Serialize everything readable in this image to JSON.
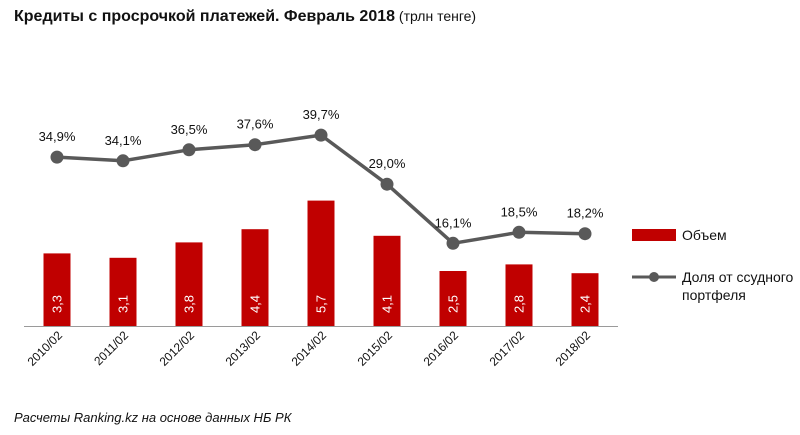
{
  "title": {
    "main": "Кредиты с просрочкой платежей. Февраль 2018",
    "unit": " (трлн тенге)"
  },
  "colors": {
    "bar": "#C00000",
    "line": "#595959",
    "axis": "#9A9A9A",
    "text": "#111111",
    "bar_label": "#FFFFFF"
  },
  "chart_data": {
    "type": "bar+line",
    "title": "Кредиты с просрочкой платежей. Февраль 2018 (трлн тенге)",
    "categories": [
      "2010/02",
      "2011/02",
      "2012/02",
      "2013/02",
      "2014/02",
      "2015/02",
      "2016/02",
      "2017/02",
      "2018/02"
    ],
    "series": [
      {
        "name": "Объем",
        "type": "bar",
        "axis": "primary",
        "values": [
          3.3,
          3.1,
          3.8,
          4.4,
          5.7,
          4.1,
          2.5,
          2.8,
          2.4
        ],
        "labels": [
          "3,3",
          "3,1",
          "3,8",
          "4,4",
          "5,7",
          "4,1",
          "2,5",
          "2,8",
          "2,4"
        ]
      },
      {
        "name": "Доля от ссудного портфеля",
        "type": "line",
        "axis": "secondary",
        "values": [
          34.9,
          34.1,
          36.5,
          37.6,
          39.7,
          29.0,
          16.1,
          18.5,
          18.2
        ],
        "labels": [
          "34,9%",
          "34,1%",
          "36,5%",
          "37,6%",
          "39,7%",
          "29,0%",
          "16,1%",
          "18,5%",
          "18,2%"
        ]
      }
    ],
    "ylim_primary": [
      0,
      9.5
    ],
    "ylim_secondary": [
      -5,
      55
    ],
    "grid": false,
    "legend_position": "right"
  },
  "legend": {
    "bar_label": "Объем",
    "line_label": "Доля от ссудного портфеля"
  },
  "source": "Расчеты Ranking.kz на основе данных НБ РК"
}
